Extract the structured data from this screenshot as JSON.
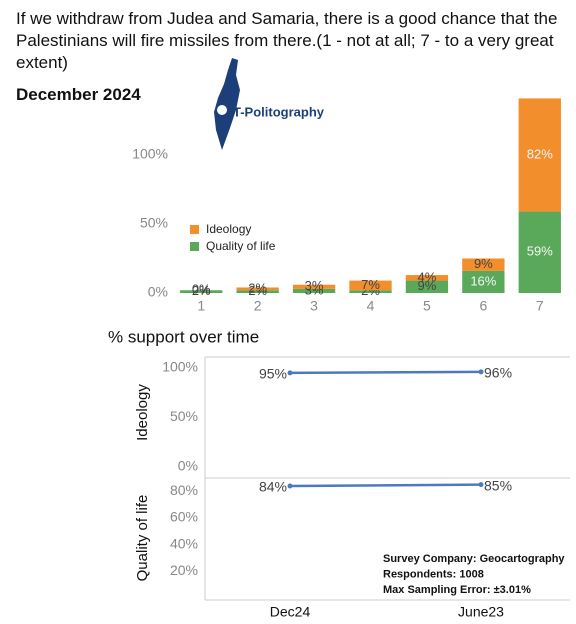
{
  "chart_data": [
    {
      "type": "bar",
      "stacked": true,
      "title": "If we withdraw from Judea and Samaria, there is a good chance that the Palestinians will fire missiles from there.(1 - not at all; 7 - to a very great extent)",
      "subtitle": "December 2024",
      "logo": "T-Politography",
      "categories": [
        "1",
        "2",
        "3",
        "4",
        "5",
        "6",
        "7"
      ],
      "series": [
        {
          "name": "Quality of life",
          "color": "#5aa95a",
          "values": [
            2,
            2,
            3,
            2,
            9,
            16,
            59
          ],
          "value_labels": [
            "2%",
            "2%",
            "3%",
            "2%",
            "9%",
            "16%",
            "59%"
          ]
        },
        {
          "name": "Ideology",
          "color": "#f28e2b",
          "values": [
            0,
            2,
            3,
            7,
            4,
            9,
            82
          ],
          "value_labels": [
            "0%",
            "2%",
            "3%",
            "7%",
            "4%",
            "9%",
            "82%"
          ]
        }
      ],
      "ylim": [
        0,
        150
      ],
      "yticks": [
        {
          "value": 0,
          "label": "0%"
        },
        {
          "value": 50,
          "label": "50%"
        },
        {
          "value": 100,
          "label": "100%"
        }
      ],
      "grid": false
    },
    {
      "type": "line",
      "title": "% support over time",
      "categories": [
        "Dec24",
        "June23"
      ],
      "panels": [
        {
          "name": "Ideology",
          "color": "#4e79c0",
          "values": [
            95,
            96
          ],
          "value_labels": [
            "95%",
            "96%"
          ],
          "ylim": [
            0,
            110
          ],
          "yticks": [
            {
              "value": 0,
              "label": "0%"
            },
            {
              "value": 50,
              "label": "50%"
            },
            {
              "value": 100,
              "label": "100%"
            }
          ]
        },
        {
          "name": "Quality of life",
          "color": "#4e79c0",
          "values": [
            84,
            85
          ],
          "value_labels": [
            "84%",
            "85%"
          ],
          "ylim": [
            0,
            90
          ],
          "yticks": [
            {
              "value": 20,
              "label": "20%"
            },
            {
              "value": 40,
              "label": "40%"
            },
            {
              "value": 60,
              "label": "60%"
            },
            {
              "value": 80,
              "label": "80%"
            }
          ]
        }
      ],
      "annotations": [
        "Survey Company: Geocartography",
        "Respondents: 1008",
        "Max Sampling Error: ±3.01%"
      ]
    }
  ]
}
